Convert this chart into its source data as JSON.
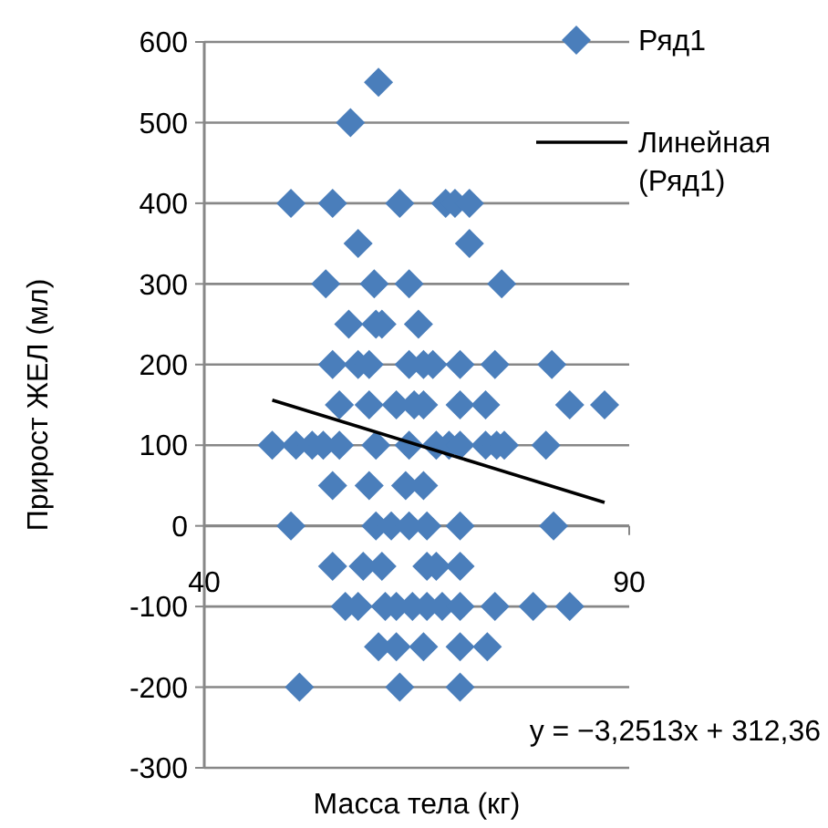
{
  "chart_data": {
    "type": "scatter",
    "xlabel": "Масса тела (кг)",
    "ylabel": "Прирост ЖЕЛ (мл)",
    "xlim": [
      40,
      90
    ],
    "xticks": [
      40,
      90
    ],
    "ylim": [
      -300,
      600
    ],
    "yticks": [
      -300,
      -200,
      -100,
      0,
      100,
      200,
      300,
      400,
      500,
      600
    ],
    "grid": "y",
    "legend": "top right",
    "annotations": [
      "y = −3,2513x + 312,36"
    ],
    "series": [
      {
        "name": "Ряд1",
        "marker": "diamond",
        "color": "#4a7ebb",
        "x": [
          60.5,
          57.2,
          50.2,
          55.1,
          63.0,
          68.4,
          69.5,
          71.2,
          58.1,
          71.2,
          54.3,
          60.0,
          64.1,
          75.0,
          57.0,
          60.2,
          60.9,
          65.2,
          55.1,
          58.1,
          59.4,
          64.1,
          65.8,
          66.9,
          70.1,
          74.2,
          80.9,
          55.9,
          59.4,
          62.6,
          64.7,
          65.8,
          70.1,
          73.1,
          83.0,
          87.1,
          48.0,
          50.8,
          52.7,
          54.0,
          55.9,
          60.2,
          64.1,
          67.3,
          68.8,
          70.1,
          73.1,
          74.4,
          75.3,
          80.2,
          55.1,
          59.4,
          63.7,
          65.8,
          50.2,
          60.2,
          62.0,
          64.1,
          66.2,
          70.1,
          81.1,
          55.1,
          58.7,
          60.9,
          66.2,
          67.3,
          70.1,
          56.6,
          58.1,
          61.3,
          62.6,
          64.5,
          66.2,
          68.0,
          70.1,
          74.2,
          78.7,
          83.0,
          60.5,
          62.6,
          65.8,
          70.1,
          73.3,
          51.2,
          63.0,
          70.1
        ],
        "values": [
          550,
          500,
          400,
          400,
          400,
          400,
          400,
          400,
          350,
          350,
          300,
          300,
          300,
          300,
          250,
          250,
          250,
          250,
          200,
          200,
          200,
          200,
          200,
          200,
          200,
          200,
          200,
          150,
          150,
          150,
          150,
          150,
          150,
          150,
          150,
          150,
          100,
          100,
          100,
          100,
          100,
          100,
          100,
          100,
          100,
          100,
          100,
          100,
          100,
          100,
          50,
          50,
          50,
          50,
          0,
          0,
          0,
          0,
          0,
          0,
          0,
          -50,
          -50,
          -50,
          -50,
          -50,
          -50,
          -100,
          -100,
          -100,
          -100,
          -100,
          -100,
          -100,
          -100,
          -100,
          -100,
          -100,
          -150,
          -150,
          -150,
          -150,
          -150,
          -200,
          -200,
          -200
        ]
      },
      {
        "name": "Линейная (Ряд1)",
        "type": "line",
        "color": "#000000",
        "x": [
          48,
          87.1
        ],
        "values": [
          156,
          29
        ]
      }
    ]
  }
}
